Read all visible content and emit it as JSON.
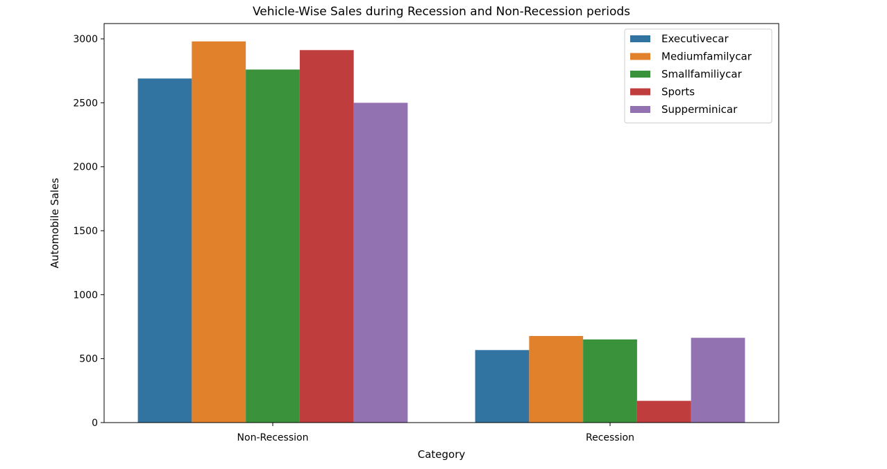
{
  "chart_data": {
    "type": "bar",
    "title": "Vehicle-Wise Sales during Recession and Non-Recession periods",
    "xlabel": "Category",
    "ylabel": "Automobile Sales",
    "categories": [
      "Non-Recession",
      "Recession"
    ],
    "series": [
      {
        "name": "Executivecar",
        "color": "#3274a1",
        "values": [
          2690,
          567
        ]
      },
      {
        "name": "Mediumfamilycar",
        "color": "#e1812c",
        "values": [
          2980,
          677
        ]
      },
      {
        "name": "Smallfamiliycar",
        "color": "#3a923a",
        "values": [
          2760,
          650
        ]
      },
      {
        "name": "Sports",
        "color": "#c03d3e",
        "values": [
          2912,
          170
        ]
      },
      {
        "name": "Supperminicar",
        "color": "#9372b2",
        "values": [
          2500,
          663
        ]
      }
    ],
    "ylim": [
      0,
      3000
    ],
    "yticks": [
      0,
      500,
      1000,
      1500,
      2000,
      2500,
      3000
    ],
    "grid": false,
    "legend_position": "top-right"
  }
}
